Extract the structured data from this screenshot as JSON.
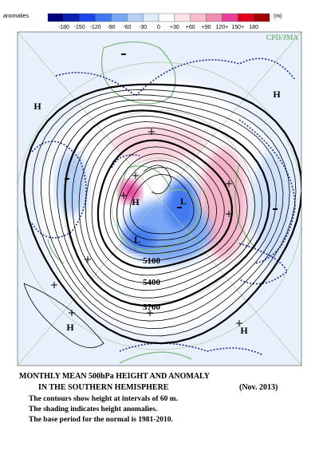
{
  "legend": {
    "title": "anomalies",
    "unit": "(m)",
    "labels": [
      "-180",
      "-150",
      "-120",
      "-90",
      "-60",
      "-30",
      "0",
      "+30",
      "+60",
      "+90",
      "120+",
      "150+",
      "180"
    ],
    "colors": [
      "#00007f",
      "#0a1fb4",
      "#1f46e6",
      "#3f78f0",
      "#7aa7f5",
      "#b4cff8",
      "#e0ecfb",
      "#ffffff",
      "#fbe3e6",
      "#f7bfcc",
      "#f08cb0",
      "#e6409a",
      "#e0001e",
      "#a00000"
    ]
  },
  "map": {
    "credit": "CPD/JMA",
    "contour_labels": [
      "5100",
      "5400",
      "5700"
    ],
    "highs": [
      "H",
      "H",
      "H",
      "H",
      "H"
    ],
    "lows": [
      "L",
      "L"
    ]
  },
  "caption": {
    "title": "MONTHLY MEAN 500hPa HEIGHT AND ANOMALY",
    "subtitle": "IN THE SOUTHERN HEMISPHERE",
    "date": "(Nov. 2013)",
    "lines": [
      "The contours show height at intervals of 60 m.",
      "The shading indicates height anomalies.",
      "The base period for the normal is 1981-2010."
    ]
  }
}
